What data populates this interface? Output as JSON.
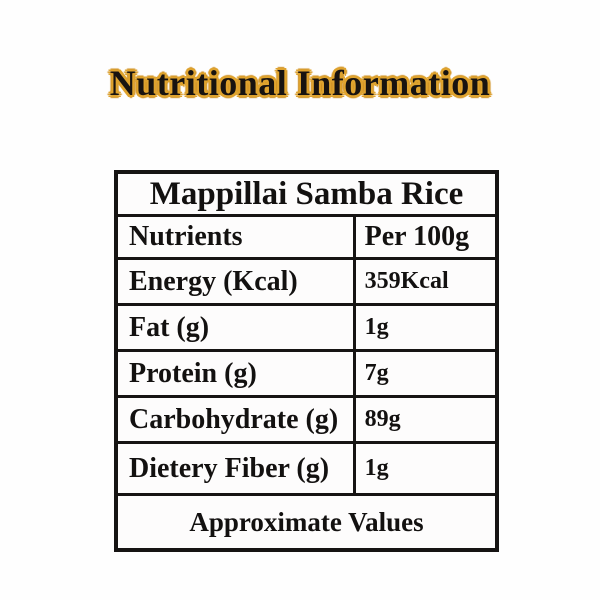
{
  "title": "Nutritional Information",
  "colors": {
    "background": "#fefefe",
    "title_text": "#181310",
    "title_outline": "#dfa32e",
    "table_border": "#161413"
  },
  "table": {
    "header": "Mappillai Samba Rice",
    "columns": [
      "Nutrients",
      "Per 100g"
    ],
    "rows": [
      {
        "label": "Energy (Kcal)",
        "value": "359Kcal"
      },
      {
        "label": "Fat (g)",
        "value": "1g"
      },
      {
        "label": "Protein (g)",
        "value": "7g"
      },
      {
        "label": "Carbohydrate (g)",
        "value": "89g"
      },
      {
        "label": "Dietery Fiber (g)",
        "value": "1g"
      }
    ],
    "footer": "Approximate Values"
  }
}
